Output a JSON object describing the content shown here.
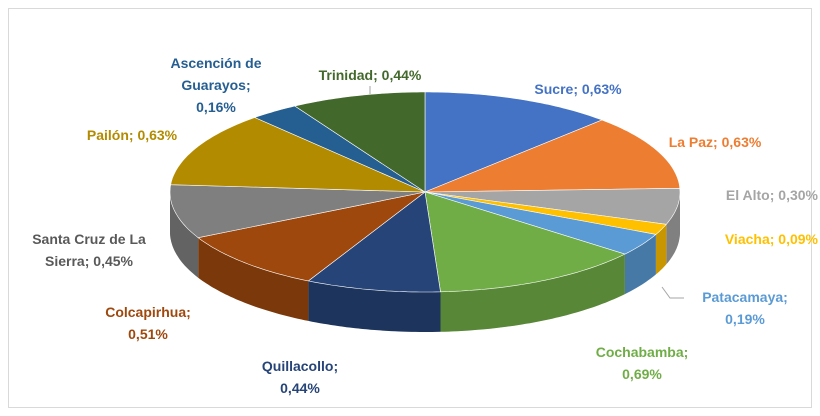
{
  "chart_data": {
    "type": "pie3d",
    "categories": [
      "Sucre",
      "La Paz",
      "El Alto",
      "Viacha",
      "Patacamaya",
      "Cochabamba",
      "Quillacollo",
      "Colcapirhua",
      "Santa Cruz de La Sierra",
      "Pailón",
      "Ascención de Guarayos",
      "Trinidad"
    ],
    "values": [
      0.63,
      0.63,
      0.3,
      0.09,
      0.19,
      0.69,
      0.44,
      0.51,
      0.45,
      0.63,
      0.16,
      0.44
    ],
    "value_labels": [
      "0,63%",
      "0,63%",
      "0,30%",
      "0,09%",
      "0,19%",
      "0,69%",
      "0,44%",
      "0,51%",
      "0,45%",
      "0,63%",
      "0,16%",
      "0,44%"
    ],
    "label_separator": "; ",
    "colors": [
      "#4472c4",
      "#ed7d31",
      "#a5a5a5",
      "#ffc000",
      "#5b9bd5",
      "#70ad47",
      "#264478",
      "#9e480e",
      "#7f7f7f",
      "#b38b00",
      "#255e91",
      "#43682b"
    ],
    "label_colors": [
      "#4472c4",
      "#ed7d31",
      "#a5a5a5",
      "#ffc000",
      "#5b9bd5",
      "#70ad47",
      "#264478",
      "#9e480e",
      "#595959",
      "#b38b00",
      "#255e91",
      "#43682b"
    ]
  }
}
